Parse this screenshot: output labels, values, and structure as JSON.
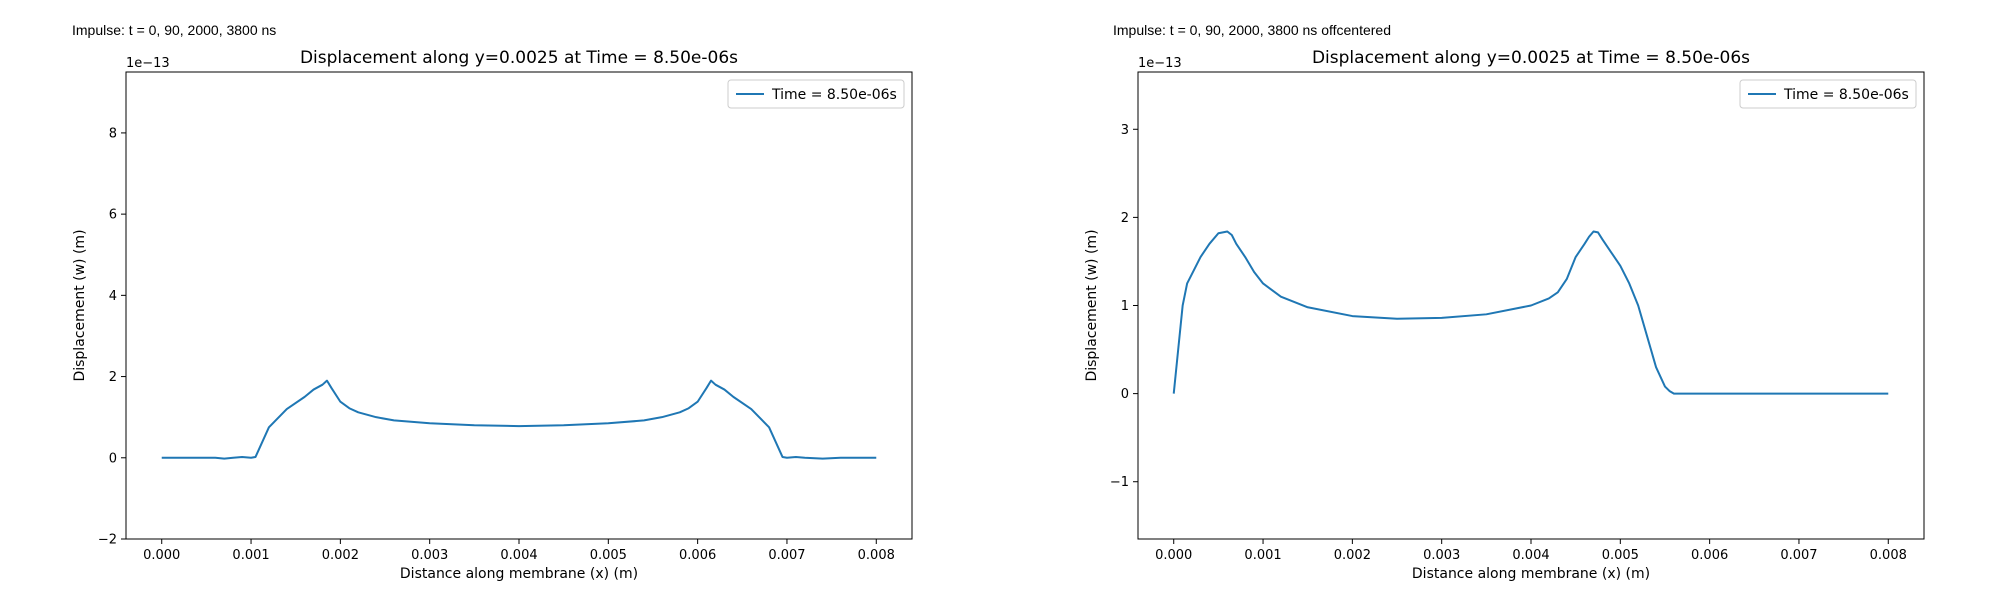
{
  "captions": [
    "Impulse: t = 0, 90, 2000, 3800 ns",
    "Impulse: t = 0, 90, 2000, 3800 ns offcentered"
  ],
  "chart_data": [
    {
      "type": "line",
      "title": "Displacement along y=0.0025 at Time = 8.50e-06s",
      "xlabel": "Distance along membrane (x) (m)",
      "ylabel": "Displacement (w) (m)",
      "y_offset_label": "1e−13",
      "xlim": [
        -0.0004,
        0.0084
      ],
      "ylim": [
        -2.0,
        9.5
      ],
      "xticks": [
        0.0,
        0.001,
        0.002,
        0.003,
        0.004,
        0.005,
        0.006,
        0.007,
        0.008
      ],
      "xtick_labels": [
        "0.000",
        "0.001",
        "0.002",
        "0.003",
        "0.004",
        "0.005",
        "0.006",
        "0.007",
        "0.008"
      ],
      "yticks": [
        -2,
        0,
        2,
        4,
        6,
        8
      ],
      "ytick_labels": [
        "−2",
        "0",
        "2",
        "4",
        "6",
        "8"
      ],
      "grid": false,
      "legend_position": "top-right",
      "color": "#1f77b4",
      "series": [
        {
          "name": "Time = 8.50e-06s",
          "x": [
            0.0,
            0.0002,
            0.0004,
            0.0006,
            0.0007,
            0.0008,
            0.0009,
            0.001,
            0.00105,
            0.0012,
            0.0014,
            0.0016,
            0.0017,
            0.0018,
            0.00185,
            0.0019,
            0.002,
            0.0021,
            0.0022,
            0.0024,
            0.0026,
            0.003,
            0.0035,
            0.004,
            0.0045,
            0.005,
            0.0054,
            0.0056,
            0.0058,
            0.0059,
            0.006,
            0.0061,
            0.00615,
            0.0062,
            0.0063,
            0.0064,
            0.0066,
            0.0068,
            0.00695,
            0.007,
            0.0071,
            0.0072,
            0.0074,
            0.0076,
            0.0078,
            0.008
          ],
          "y": [
            0.0,
            0.0,
            0.0,
            0.0,
            -0.02,
            0.0,
            0.02,
            0.0,
            0.02,
            0.75,
            1.2,
            1.5,
            1.68,
            1.8,
            1.9,
            1.72,
            1.38,
            1.22,
            1.12,
            1.0,
            0.92,
            0.85,
            0.8,
            0.78,
            0.8,
            0.85,
            0.92,
            1.0,
            1.12,
            1.22,
            1.38,
            1.72,
            1.9,
            1.8,
            1.68,
            1.5,
            1.2,
            0.75,
            0.02,
            0.0,
            0.02,
            0.0,
            -0.02,
            0.0,
            0.0,
            0.0
          ]
        }
      ]
    },
    {
      "type": "line",
      "title": "Displacement along y=0.0025 at Time = 8.50e-06s",
      "xlabel": "Distance along membrane (x) (m)",
      "ylabel": "Displacement (w) (m)",
      "y_offset_label": "1e−13",
      "xlim": [
        -0.0004,
        0.0084
      ],
      "ylim": [
        -1.65,
        3.65
      ],
      "xticks": [
        0.0,
        0.001,
        0.002,
        0.003,
        0.004,
        0.005,
        0.006,
        0.007,
        0.008
      ],
      "xtick_labels": [
        "0.000",
        "0.001",
        "0.002",
        "0.003",
        "0.004",
        "0.005",
        "0.006",
        "0.007",
        "0.008"
      ],
      "yticks": [
        -1,
        0,
        1,
        2,
        3
      ],
      "ytick_labels": [
        "−1",
        "0",
        "1",
        "2",
        "3"
      ],
      "grid": false,
      "legend_position": "top-right",
      "color": "#1f77b4",
      "series": [
        {
          "name": "Time = 8.50e-06s",
          "x": [
            0.0,
            5e-05,
            0.0001,
            0.00015,
            0.0002,
            0.0003,
            0.0004,
            0.0005,
            0.00055,
            0.0006,
            0.00065,
            0.0007,
            0.0008,
            0.0009,
            0.001,
            0.0012,
            0.0015,
            0.002,
            0.0025,
            0.003,
            0.0035,
            0.004,
            0.0042,
            0.0043,
            0.0044,
            0.0045,
            0.0046,
            0.00465,
            0.0047,
            0.00475,
            0.0048,
            0.0049,
            0.005,
            0.0051,
            0.0052,
            0.0053,
            0.0054,
            0.0055,
            0.00555,
            0.0056,
            0.0057,
            0.006,
            0.007,
            0.008
          ],
          "y": [
            0.0,
            0.5,
            1.0,
            1.25,
            1.35,
            1.55,
            1.7,
            1.82,
            1.83,
            1.84,
            1.8,
            1.7,
            1.55,
            1.38,
            1.25,
            1.1,
            0.98,
            0.88,
            0.85,
            0.86,
            0.9,
            1.0,
            1.08,
            1.15,
            1.3,
            1.55,
            1.7,
            1.78,
            1.84,
            1.83,
            1.75,
            1.6,
            1.45,
            1.25,
            1.0,
            0.65,
            0.3,
            0.08,
            0.03,
            0.0,
            0.0,
            0.0,
            0.0,
            0.0
          ]
        }
      ]
    }
  ]
}
